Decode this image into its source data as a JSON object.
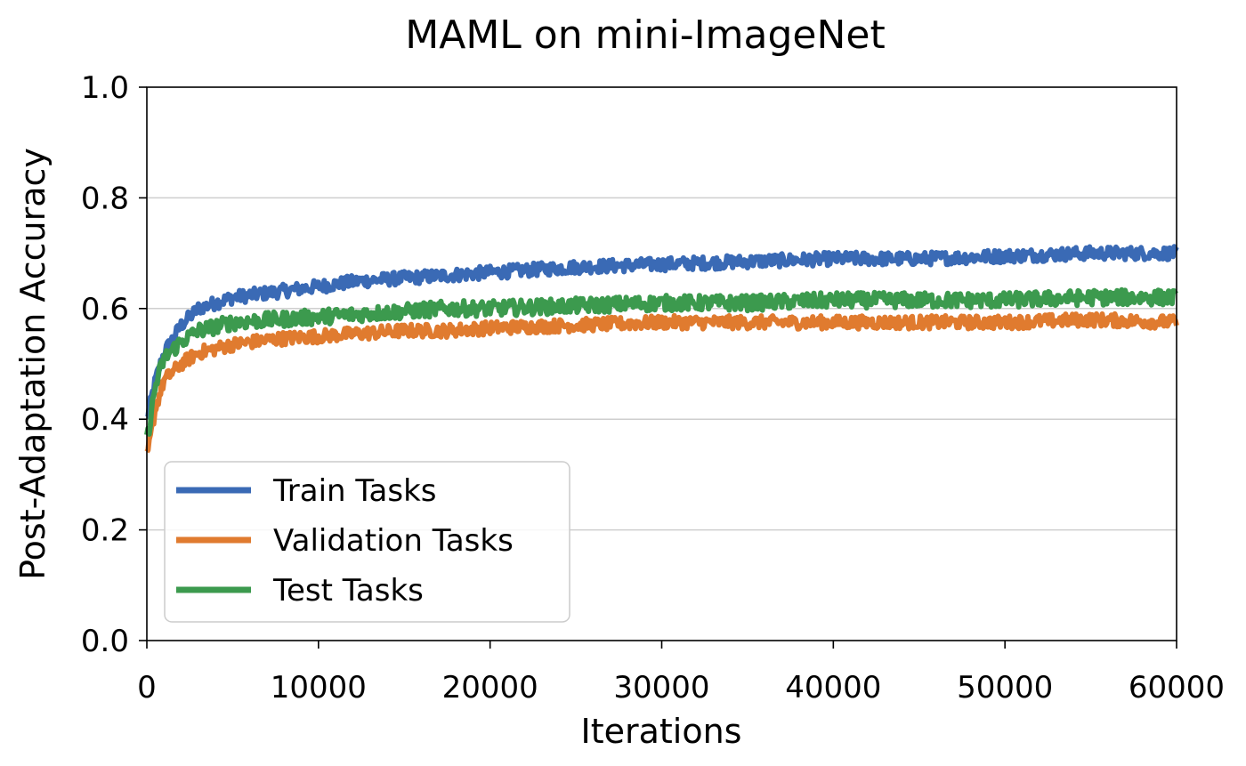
{
  "chart_data": {
    "type": "line",
    "title": "MAML on mini-ImageNet",
    "xlabel": "Iterations",
    "ylabel": "Post-Adaptation Accuracy",
    "xlim": [
      0,
      60000
    ],
    "ylim": [
      0.0,
      1.0
    ],
    "xticks": [
      "0",
      "10000",
      "20000",
      "30000",
      "40000",
      "50000",
      "60000"
    ],
    "yticks": [
      "0.0",
      "0.2",
      "0.4",
      "0.6",
      "0.8",
      "1.0"
    ],
    "grid": "horizontal",
    "legend_position": "lower-left",
    "x": [
      0,
      500,
      1000,
      2000,
      3000,
      5000,
      7500,
      10000,
      12500,
      15000,
      17500,
      20000,
      25000,
      30000,
      35000,
      40000,
      45000,
      50000,
      55000,
      60000
    ],
    "series": [
      {
        "name": "Train Tasks",
        "color": "#3a6ab5",
        "values": [
          0.4,
          0.47,
          0.52,
          0.57,
          0.6,
          0.62,
          0.63,
          0.64,
          0.65,
          0.655,
          0.66,
          0.665,
          0.675,
          0.68,
          0.685,
          0.69,
          0.69,
          0.695,
          0.7,
          0.7
        ],
        "noise": 0.012
      },
      {
        "name": "Validation Tasks",
        "color": "#e07b2f",
        "values": [
          0.33,
          0.42,
          0.47,
          0.5,
          0.52,
          0.535,
          0.545,
          0.55,
          0.555,
          0.56,
          0.56,
          0.565,
          0.57,
          0.575,
          0.575,
          0.575,
          0.575,
          0.575,
          0.58,
          0.575
        ],
        "noise": 0.012
      },
      {
        "name": "Test Tasks",
        "color": "#3c9a4e",
        "values": [
          0.36,
          0.46,
          0.51,
          0.54,
          0.56,
          0.575,
          0.58,
          0.585,
          0.59,
          0.595,
          0.6,
          0.6,
          0.605,
          0.61,
          0.61,
          0.615,
          0.615,
          0.615,
          0.62,
          0.62
        ],
        "noise": 0.014
      }
    ]
  }
}
